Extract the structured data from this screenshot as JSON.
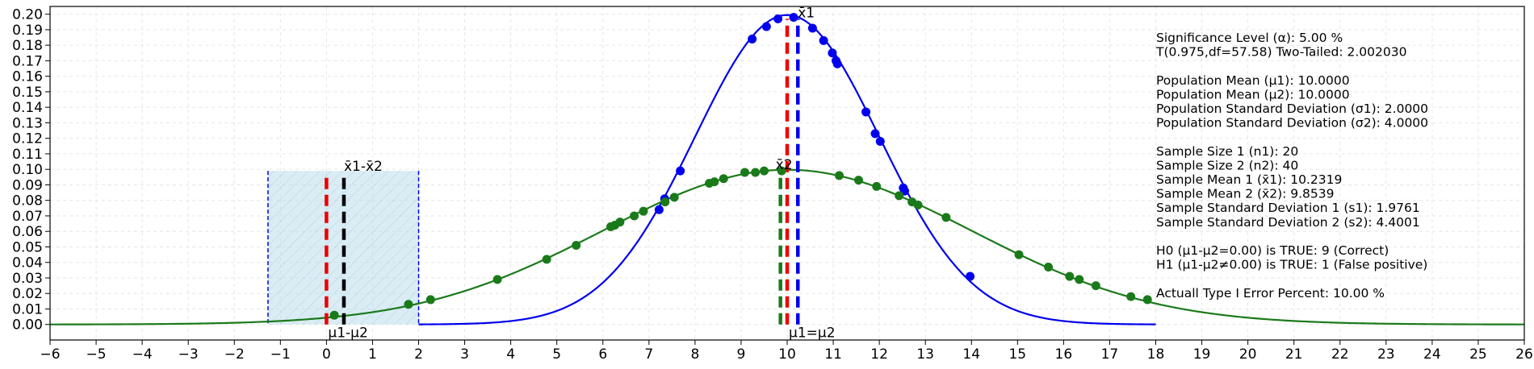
{
  "chart_data": {
    "type": "line",
    "title": "",
    "xlabel": "",
    "ylabel": "",
    "xlim": [
      -6,
      26
    ],
    "ylim": [
      -0.01,
      0.205
    ],
    "x_ticks": [
      -6,
      -5,
      -4,
      -3,
      -2,
      -1,
      0,
      1,
      2,
      3,
      4,
      5,
      6,
      7,
      8,
      9,
      10,
      11,
      12,
      13,
      14,
      15,
      16,
      17,
      18,
      19,
      20,
      21,
      22,
      23,
      24,
      25,
      26
    ],
    "y_ticks": [
      0.0,
      0.01,
      0.02,
      0.03,
      0.04,
      0.05,
      0.06,
      0.07,
      0.08,
      0.09,
      0.1,
      0.11,
      0.12,
      0.13,
      0.14,
      0.15,
      0.16,
      0.17,
      0.18,
      0.19,
      0.2
    ],
    "grid": true,
    "colors": {
      "curve1": "#0000ee",
      "curve2": "#1a7a1a",
      "mean_line": "#ee0000",
      "diff_line": "#000000",
      "region_fill": "#add8e6",
      "region_edge": "#0000ee"
    },
    "series": [
      {
        "key": "curve1",
        "mean": 10.0,
        "sd": 2.0,
        "x_range": [
          2.0,
          18.0
        ],
        "color": "#0000ee",
        "sample_points": [
          [
            7.22,
            0.074
          ],
          [
            7.34,
            0.081
          ],
          [
            7.68,
            0.099
          ],
          [
            9.24,
            0.184
          ],
          [
            9.55,
            0.192
          ],
          [
            9.8,
            0.197
          ],
          [
            10.14,
            0.198
          ],
          [
            10.55,
            0.191
          ],
          [
            10.79,
            0.183
          ],
          [
            10.98,
            0.175
          ],
          [
            11.06,
            0.17
          ],
          [
            11.09,
            0.168
          ],
          [
            11.71,
            0.137
          ],
          [
            11.91,
            0.123
          ],
          [
            12.02,
            0.118
          ],
          [
            12.52,
            0.088
          ],
          [
            12.55,
            0.086
          ],
          [
            13.97,
            0.031
          ]
        ]
      },
      {
        "key": "curve2",
        "mean": 10.0,
        "sd": 4.0,
        "x_range": [
          -6.0,
          26.0
        ],
        "color": "#1a7a1a",
        "sample_points": [
          [
            0.17,
            0.006
          ],
          [
            1.78,
            0.013
          ],
          [
            2.26,
            0.016
          ],
          [
            3.71,
            0.029
          ],
          [
            4.78,
            0.042
          ],
          [
            5.42,
            0.051
          ],
          [
            6.17,
            0.063
          ],
          [
            6.26,
            0.064
          ],
          [
            6.37,
            0.066
          ],
          [
            6.68,
            0.07
          ],
          [
            6.88,
            0.073
          ],
          [
            7.35,
            0.079
          ],
          [
            7.55,
            0.082
          ],
          [
            8.31,
            0.091
          ],
          [
            8.42,
            0.092
          ],
          [
            8.62,
            0.094
          ],
          [
            9.08,
            0.098
          ],
          [
            9.31,
            0.098
          ],
          [
            9.5,
            0.099
          ],
          [
            9.88,
            0.099
          ],
          [
            11.13,
            0.096
          ],
          [
            11.55,
            0.093
          ],
          [
            11.94,
            0.089
          ],
          [
            12.43,
            0.083
          ],
          [
            12.71,
            0.079
          ],
          [
            12.84,
            0.077
          ],
          [
            13.45,
            0.069
          ],
          [
            15.03,
            0.045
          ],
          [
            15.67,
            0.037
          ],
          [
            16.13,
            0.031
          ],
          [
            16.34,
            0.029
          ],
          [
            16.7,
            0.025
          ],
          [
            17.46,
            0.018
          ],
          [
            17.82,
            0.016
          ]
        ]
      }
    ],
    "region": {
      "x0": -1.27,
      "x1": 2.0,
      "y_top": 0.099
    },
    "vlines": [
      {
        "key": "mu_diff",
        "x": 0.0,
        "y_top": 0.097,
        "color": "#ee0000"
      },
      {
        "key": "xbar_diff",
        "x": 0.378,
        "y_top": 0.097,
        "color": "#000000"
      },
      {
        "key": "mu_eq",
        "x": 10.0,
        "y_top": 0.197,
        "color": "#ee0000"
      },
      {
        "key": "xbar1",
        "x": 10.2319,
        "y_top": 0.197,
        "color": "#0000ee"
      },
      {
        "key": "xbar2",
        "x": 9.8539,
        "y_top": 0.099,
        "color": "#1a7a1a"
      }
    ],
    "annotations": {
      "xbar1": "x̄1",
      "xbar2": "x̄2",
      "xbar_diff": "x̄1-x̄2",
      "mu_diff": "μ1-μ2",
      "mu_eq": "μ1=μ2"
    },
    "info_lines": [
      "Significance Level (α): 5.00 %",
      "T(0.975,df=57.58) Two-Tailed: 2.002030",
      "",
      "Population Mean (μ1): 10.0000",
      "Population Mean (μ2): 10.0000",
      "Population Standard Deviation (σ1): 2.0000",
      "Population Standard Deviation (σ2): 4.0000",
      "",
      "Sample Size 1 (n1): 20",
      "Sample Size 2 (n2): 40",
      "Sample Mean 1 (x̄1): 10.2319",
      "Sample Mean 2 (x̄2): 9.8539",
      "Sample Standard Deviation 1 (s1): 1.9761",
      "Sample Standard Deviation 2 (s2): 4.4001",
      "",
      "H0 (μ1-μ2=0.00) is TRUE: 9 (Correct)",
      "H1 (μ1-μ2≠0.00) is TRUE: 1 (False positive)",
      "",
      "Actuall Type I Error Percent: 10.00 %"
    ]
  }
}
